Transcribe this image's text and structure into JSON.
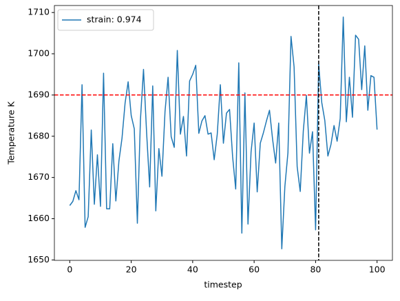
{
  "chart_data": {
    "type": "line",
    "xlabel": "timestep",
    "ylabel": "Temperature K",
    "x": [
      0,
      1,
      2,
      3,
      4,
      5,
      6,
      7,
      8,
      9,
      10,
      11,
      12,
      13,
      14,
      15,
      16,
      17,
      18,
      19,
      20,
      21,
      22,
      23,
      24,
      25,
      26,
      27,
      28,
      29,
      30,
      31,
      32,
      33,
      34,
      35,
      36,
      37,
      38,
      39,
      40,
      41,
      42,
      43,
      44,
      45,
      46,
      47,
      48,
      49,
      50,
      51,
      52,
      53,
      54,
      55,
      56,
      57,
      58,
      59,
      60,
      61,
      62,
      63,
      64,
      65,
      66,
      67,
      68,
      69,
      70,
      71,
      72,
      73,
      74,
      75,
      76,
      77,
      78,
      79,
      80,
      81,
      82,
      83,
      84,
      85,
      86,
      87,
      88,
      89,
      90,
      91,
      92,
      93,
      94,
      95,
      96,
      97,
      98,
      99,
      100
    ],
    "series": [
      {
        "name": "strain: 0.974",
        "color": "#1f77b4",
        "values": [
          1663.2,
          1664.2,
          1666.8,
          1664.6,
          1692.5,
          1657.9,
          1660.5,
          1681.5,
          1663.5,
          1675.5,
          1663,
          1695.3,
          1662.4,
          1662.4,
          1678.2,
          1664.3,
          1674,
          1679.5,
          1688,
          1693.2,
          1685,
          1681.8,
          1658.9,
          1684,
          1696.2,
          1681,
          1667.7,
          1692.2,
          1661.9,
          1677,
          1670.3,
          1686,
          1694.3,
          1679.9,
          1677.3,
          1700.8,
          1680.5,
          1684.8,
          1675.2,
          1693.4,
          1695,
          1697.2,
          1680.7,
          1683.7,
          1685,
          1680.5,
          1680.8,
          1674.3,
          1680.5,
          1692.5,
          1678.3,
          1685.6,
          1686.5,
          1675,
          1667.2,
          1697.8,
          1656.5,
          1690.5,
          1658.7,
          1676.2,
          1683.2,
          1666.5,
          1678.3,
          1680.8,
          1683.7,
          1686.3,
          1679.3,
          1673.5,
          1683.2,
          1652.7,
          1667.8,
          1676,
          1704.2,
          1696.8,
          1672.6,
          1666.6,
          1681.3,
          1689.9,
          1675.9,
          1681.1,
          1657.3,
          1697.5,
          1688.2,
          1683.8,
          1675.2,
          1678,
          1682.6,
          1678.8,
          1684.3,
          1708.9,
          1683.5,
          1694.3,
          1684.6,
          1704.5,
          1703.5,
          1691.3,
          1701.9,
          1686.3,
          1694.7,
          1694.3,
          1681.6
        ]
      }
    ],
    "hlines": [
      {
        "y": 1690,
        "color": "#ff0000"
      }
    ],
    "vlines": [
      {
        "x": 81,
        "color": "#000000"
      }
    ],
    "xlim": [
      -5,
      105
    ],
    "ylim": [
      1649.9,
      1711.7
    ],
    "xticks": [
      0,
      20,
      40,
      60,
      80,
      100
    ],
    "yticks": [
      1650,
      1660,
      1670,
      1680,
      1690,
      1700,
      1710
    ],
    "legend": "upper left"
  }
}
